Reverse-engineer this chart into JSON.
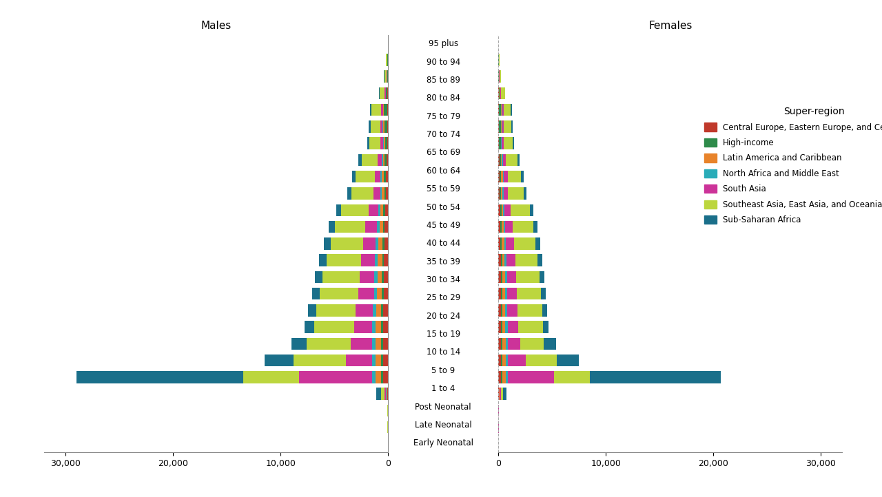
{
  "age_groups_display": [
    "Early Neonatal",
    "Late Neonatal",
    "Post Neonatal",
    "1 to 4",
    "5 to 9",
    "10 to 14",
    "15 to 19",
    "20 to 24",
    "25 to 29",
    "30 to 34",
    "35 to 39",
    "40 to 44",
    "45 to 49",
    "50 to 54",
    "55 to 59",
    "60 to 64",
    "65 to 69",
    "70 to 74",
    "75 to 79",
    "80 to 84",
    "85 to 89",
    "90 to 94",
    "95 plus"
  ],
  "regions": [
    "Central Europe, Eastern Europe, and Central Asia",
    "High-income",
    "Latin America and Caribbean",
    "North Africa and Middle East",
    "South Asia",
    "Southeast Asia, East Asia, and Oceania",
    "Sub-Saharan Africa"
  ],
  "colors": [
    "#c0392b",
    "#2e8b4a",
    "#e8832a",
    "#2aacb8",
    "#cc3399",
    "#bcd63e",
    "#1a6f8a"
  ],
  "males": [
    [
      5,
      5,
      5,
      3,
      10,
      35,
      10
    ],
    [
      5,
      5,
      5,
      3,
      10,
      35,
      10
    ],
    [
      50,
      50,
      50,
      30,
      180,
      280,
      480
    ],
    [
      480,
      190,
      480,
      340,
      6800,
      5200,
      15500
    ],
    [
      490,
      190,
      490,
      340,
      2400,
      4900,
      2700
    ],
    [
      490,
      190,
      490,
      340,
      1950,
      4100,
      1450
    ],
    [
      480,
      195,
      480,
      335,
      1650,
      3750,
      870
    ],
    [
      450,
      175,
      460,
      315,
      1600,
      3650,
      780
    ],
    [
      420,
      175,
      430,
      295,
      1460,
      3550,
      710
    ],
    [
      400,
      175,
      410,
      285,
      1370,
      3450,
      690
    ],
    [
      380,
      175,
      390,
      275,
      1270,
      3250,
      670
    ],
    [
      350,
      175,
      360,
      260,
      1170,
      3050,
      640
    ],
    [
      315,
      175,
      315,
      225,
      1070,
      2850,
      590
    ],
    [
      275,
      175,
      275,
      195,
      880,
      2550,
      490
    ],
    [
      215,
      145,
      215,
      145,
      635,
      2050,
      390
    ],
    [
      195,
      195,
      195,
      127,
      537,
      1760,
      343
    ],
    [
      147,
      195,
      147,
      97,
      390,
      1470,
      293
    ],
    [
      97,
      195,
      88,
      68,
      244,
      1070,
      195
    ],
    [
      88,
      273,
      78,
      58,
      195,
      927,
      165
    ],
    [
      78,
      292,
      68,
      48,
      175,
      878,
      146
    ],
    [
      48,
      127,
      38,
      19,
      78,
      488,
      58
    ],
    [
      29,
      49,
      19,
      10,
      39,
      195,
      29
    ],
    [
      19,
      29,
      10,
      5,
      19,
      117,
      19
    ]
  ],
  "females": [
    [
      4,
      4,
      4,
      2,
      8,
      22,
      8
    ],
    [
      4,
      4,
      4,
      2,
      8,
      22,
      6
    ],
    [
      28,
      28,
      28,
      18,
      140,
      185,
      330
    ],
    [
      265,
      130,
      270,
      195,
      4350,
      3300,
      12200
    ],
    [
      265,
      130,
      270,
      195,
      1700,
      2850,
      2100
    ],
    [
      265,
      130,
      270,
      195,
      1150,
      2200,
      1150
    ],
    [
      255,
      135,
      270,
      200,
      970,
      2300,
      530
    ],
    [
      250,
      125,
      265,
      195,
      940,
      2300,
      490
    ],
    [
      240,
      125,
      260,
      190,
      910,
      2250,
      460
    ],
    [
      230,
      125,
      250,
      185,
      850,
      2200,
      450
    ],
    [
      220,
      125,
      240,
      180,
      795,
      2100,
      440
    ],
    [
      205,
      125,
      225,
      165,
      740,
      2000,
      420
    ],
    [
      185,
      125,
      195,
      145,
      665,
      1910,
      390
    ],
    [
      165,
      125,
      175,
      125,
      565,
      1760,
      330
    ],
    [
      135,
      105,
      145,
      97,
      430,
      1460,
      265
    ],
    [
      126,
      145,
      136,
      87,
      370,
      1270,
      235
    ],
    [
      97,
      145,
      97,
      68,
      273,
      1075,
      195
    ],
    [
      68,
      145,
      58,
      48,
      175,
      830,
      136
    ],
    [
      58,
      195,
      53,
      38,
      146,
      732,
      117
    ],
    [
      48,
      214,
      48,
      34,
      127,
      682,
      97
    ],
    [
      29,
      97,
      24,
      14,
      48,
      390,
      38
    ],
    [
      19,
      38,
      14,
      5,
      19,
      146,
      19
    ],
    [
      10,
      19,
      5,
      3,
      10,
      58,
      10
    ]
  ],
  "title_males": "Males",
  "title_females": "Females",
  "legend_title": "Super-region",
  "xlim": 32000,
  "background_color": "#ffffff",
  "bar_height": 0.72
}
